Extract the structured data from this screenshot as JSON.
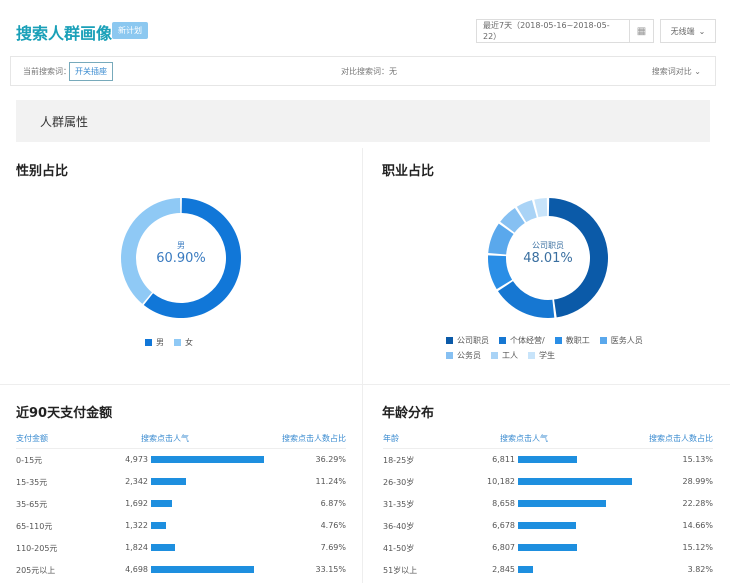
{
  "header": {
    "title": "搜索人群画像",
    "badge": "新计划",
    "date_range": "最近7天（2018-05-16~2018-05-22）",
    "device": "无线端"
  },
  "search_bar": {
    "current_label": "当前搜索词：",
    "current_keyword": "开关插座",
    "compare_label": "对比搜索词：无",
    "compare_button": "搜索词对比"
  },
  "section_title": "人群属性",
  "gender": {
    "title": "性别占比",
    "center_label": "男",
    "center_value": "60.90%",
    "slices": [
      {
        "name": "男",
        "value": 60.9,
        "color": "#1177d8"
      },
      {
        "name": "女",
        "value": 39.1,
        "color": "#8fc9f5"
      }
    ]
  },
  "occupation": {
    "title": "职业占比",
    "center_label": "公司职员",
    "center_value": "48.01%",
    "slices": [
      {
        "name": "公司职员",
        "value": 48.01,
        "color": "#0b5aa8"
      },
      {
        "name": "个体经营/",
        "value": 18,
        "color": "#1677d2"
      },
      {
        "name": "教职工",
        "value": 10,
        "color": "#2a8ee6"
      },
      {
        "name": "医务人员",
        "value": 9,
        "color": "#5aa8ec"
      },
      {
        "name": "公务员",
        "value": 6,
        "color": "#86c0f2"
      },
      {
        "name": "工人",
        "value": 5,
        "color": "#a9d3f6"
      },
      {
        "name": "学生",
        "value": 3.99,
        "color": "#c8e4fa"
      }
    ]
  },
  "payment": {
    "title": "近90天支付金额",
    "headers": [
      "支付金额",
      "搜索点击人气",
      "搜索点击人数占比"
    ],
    "rows": [
      {
        "label": "0-15元",
        "value": "4,973",
        "pct": "36.29%",
        "p": 36.29
      },
      {
        "label": "15-35元",
        "value": "2,342",
        "pct": "11.24%",
        "p": 11.24
      },
      {
        "label": "35-65元",
        "value": "1,692",
        "pct": "6.87%",
        "p": 6.87
      },
      {
        "label": "65-110元",
        "value": "1,322",
        "pct": "4.76%",
        "p": 4.76
      },
      {
        "label": "110-205元",
        "value": "1,824",
        "pct": "7.69%",
        "p": 7.69
      },
      {
        "label": "205元以上",
        "value": "4,698",
        "pct": "33.15%",
        "p": 33.15
      }
    ]
  },
  "age": {
    "title": "年龄分布",
    "headers": [
      "年龄",
      "搜索点击人气",
      "搜索点击人数占比"
    ],
    "rows": [
      {
        "label": "18-25岁",
        "value": "6,811",
        "pct": "15.13%",
        "p": 15.13
      },
      {
        "label": "26-30岁",
        "value": "10,182",
        "pct": "28.99%",
        "p": 28.99
      },
      {
        "label": "31-35岁",
        "value": "8,658",
        "pct": "22.28%",
        "p": 22.28
      },
      {
        "label": "36-40岁",
        "value": "6,678",
        "pct": "14.66%",
        "p": 14.66
      },
      {
        "label": "41-50岁",
        "value": "6,807",
        "pct": "15.12%",
        "p": 15.12
      },
      {
        "label": "51岁以上",
        "value": "2,845",
        "pct": "3.82%",
        "p": 3.82
      }
    ]
  }
}
